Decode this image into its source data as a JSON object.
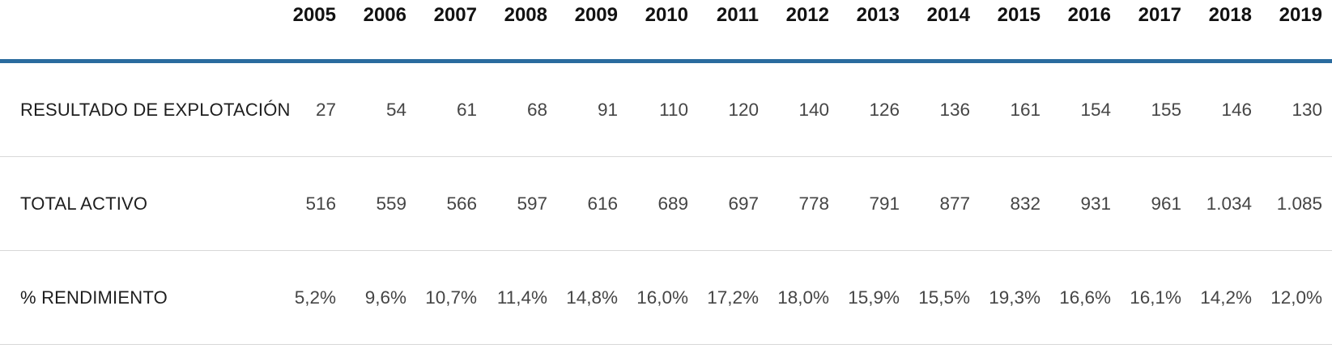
{
  "colors": {
    "accent_line": "#2a6b9e",
    "row_divider": "#d8d8d8",
    "header_text": "#121212",
    "label_text": "#1e1e1e",
    "value_text": "#454545",
    "background": "#ffffff"
  },
  "table": {
    "years": [
      "2005",
      "2006",
      "2007",
      "2008",
      "2009",
      "2010",
      "2011",
      "2012",
      "2013",
      "2014",
      "2015",
      "2016",
      "2017",
      "2018",
      "2019"
    ],
    "rows": [
      {
        "label": "RESULTADO DE EXPLOTACIÓN",
        "values": [
          "27",
          "54",
          "61",
          "68",
          "91",
          "110",
          "120",
          "140",
          "126",
          "136",
          "161",
          "154",
          "155",
          "146",
          "130"
        ]
      },
      {
        "label": "TOTAL ACTIVO",
        "values": [
          "516",
          "559",
          "566",
          "597",
          "616",
          "689",
          "697",
          "778",
          "791",
          "877",
          "832",
          "931",
          "961",
          "1.034",
          "1.085"
        ]
      },
      {
        "label": "% RENDIMIENTO",
        "values": [
          "5,2%",
          "9,6%",
          "10,7%",
          "11,4%",
          "14,8%",
          "16,0%",
          "17,2%",
          "18,0%",
          "15,9%",
          "15,5%",
          "19,3%",
          "16,6%",
          "16,1%",
          "14,2%",
          "12,0%"
        ]
      }
    ]
  },
  "chart_data": {
    "type": "table",
    "title": "",
    "columns": [
      "2005",
      "2006",
      "2007",
      "2008",
      "2009",
      "2010",
      "2011",
      "2012",
      "2013",
      "2014",
      "2015",
      "2016",
      "2017",
      "2018",
      "2019"
    ],
    "rows": [
      {
        "label": "RESULTADO DE EXPLOTACIÓN",
        "values": [
          27,
          54,
          61,
          68,
          91,
          110,
          120,
          140,
          126,
          136,
          161,
          154,
          155,
          146,
          130
        ]
      },
      {
        "label": "TOTAL ACTIVO",
        "values": [
          516,
          559,
          566,
          597,
          616,
          689,
          697,
          778,
          791,
          877,
          832,
          931,
          961,
          1034,
          1085
        ]
      },
      {
        "label": "% RENDIMIENTO",
        "values_percent": [
          5.2,
          9.6,
          10.7,
          11.4,
          14.8,
          16.0,
          17.2,
          18.0,
          15.9,
          15.5,
          19.3,
          16.6,
          16.1,
          14.2,
          12.0
        ]
      }
    ],
    "layout_hints": {
      "header_rule_color": "#2a6b9e",
      "row_divider_color": "#d8d8d8",
      "first_column": "row labels",
      "data_alignment": "right"
    }
  }
}
